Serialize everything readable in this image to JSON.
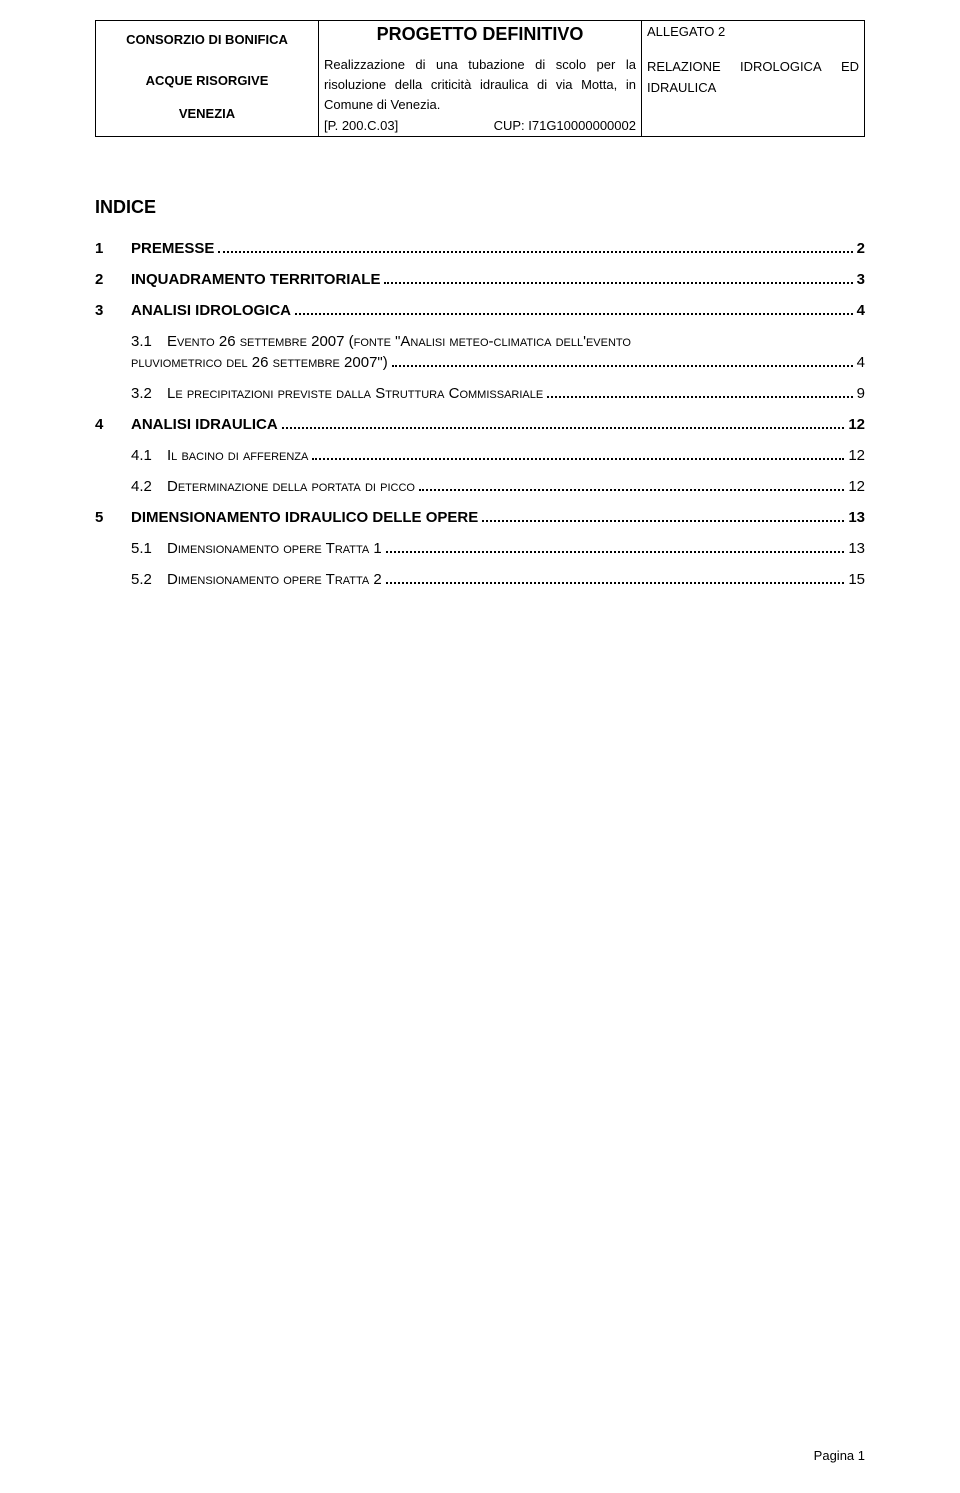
{
  "header": {
    "left": {
      "org1": "CONSORZIO DI BONIFICA",
      "org2": "ACQUE RISORGIVE",
      "org3": "VENEZIA"
    },
    "mid": {
      "title": "PROGETTO DEFINITIVO",
      "desc": "Realizzazione di una tubazione di scolo per la risoluzione della criticità idraulica di via Motta, in Comune di Venezia.",
      "ref_left": "[P. 200.C.03]",
      "ref_right": "CUP: I71G10000000002"
    },
    "right": {
      "allegato": "ALLEGATO 2",
      "rel_a": "RELAZIONE",
      "rel_b": "IDROLOGICA",
      "rel_c": "ED",
      "rel_d": "IDRAULICA"
    }
  },
  "indice_title": "INDICE",
  "toc": [
    {
      "type": "top",
      "num": "1",
      "text": "PREMESSE",
      "page": "2"
    },
    {
      "type": "top",
      "num": "2",
      "text": "INQUADRAMENTO TERRITORIALE",
      "page": "3"
    },
    {
      "type": "top",
      "num": "3",
      "text": "ANALISI IDROLOGICA",
      "page": "4"
    },
    {
      "type": "multiline",
      "num": "3.1",
      "text_a": "Evento 26 settembre 2007 (fonte \"Analisi meteo-climatica dell'evento",
      "text_b": "pluviometrico del 26 settembre 2007\")",
      "page": "4"
    },
    {
      "type": "sub",
      "num": "3.2",
      "text": "Le precipitazioni previste dalla Struttura Commissariale",
      "page": "9"
    },
    {
      "type": "top",
      "num": "4",
      "text": "ANALISI IDRAULICA",
      "page": "12"
    },
    {
      "type": "sub",
      "num": "4.1",
      "text": "Il bacino di afferenza",
      "page": "12"
    },
    {
      "type": "sub",
      "num": "4.2",
      "text": "Determinazione della portata di picco",
      "page": "12"
    },
    {
      "type": "top",
      "num": "5",
      "text": "DIMENSIONAMENTO IDRAULICO DELLE OPERE",
      "page": "13"
    },
    {
      "type": "sub",
      "num": "5.1",
      "text": "Dimensionamento opere Tratta 1",
      "page": "13"
    },
    {
      "type": "sub",
      "num": "5.2",
      "text": "Dimensionamento opere Tratta 2",
      "page": "15"
    }
  ],
  "footer": "Pagina 1"
}
